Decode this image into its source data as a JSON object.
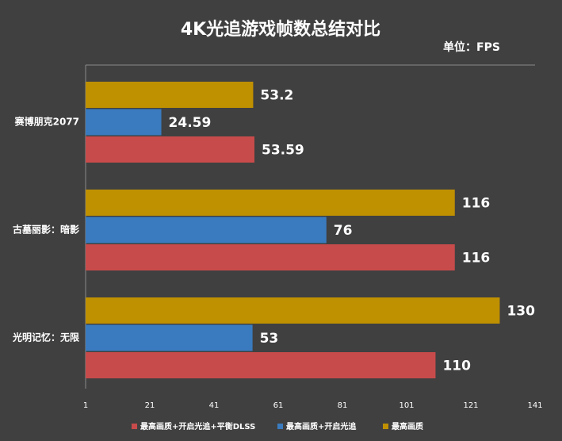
{
  "chart_data": {
    "type": "barh",
    "title": "4K光追游戏帧数总结对比",
    "subtitle": "单位：FPS",
    "categories": [
      "赛博朋克2077",
      "古墓丽影：暗影",
      "光明记忆：无限"
    ],
    "series": [
      {
        "name": "最高画质+开启光追+平衡DLSS",
        "color": "#c84b4b",
        "values": [
          53.59,
          116,
          110
        ]
      },
      {
        "name": "最高画质+开启光追",
        "color": "#3a7bbf",
        "values": [
          24.59,
          76,
          53
        ]
      },
      {
        "name": "最高画质",
        "color": "#bf9000",
        "values": [
          53.2,
          116,
          130
        ]
      }
    ],
    "xlim": [
      1,
      141
    ],
    "xticks": [
      1,
      21,
      41,
      61,
      81,
      101,
      121,
      141
    ],
    "legend": "bottom"
  }
}
